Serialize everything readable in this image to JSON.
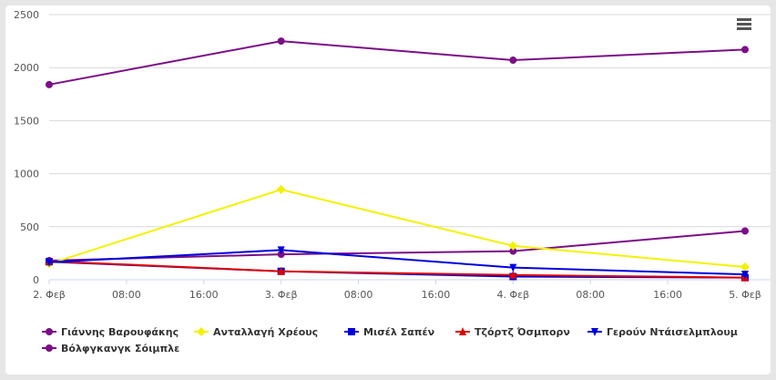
{
  "menu_icon": "hamburger-menu-icon",
  "chart_data": {
    "type": "line",
    "title": "",
    "xlabel": "",
    "ylabel": "",
    "ylim": [
      0,
      2500
    ],
    "yticks": [
      0,
      500,
      1000,
      1500,
      2000,
      2500
    ],
    "xrange_hours": [
      0,
      72
    ],
    "xticks": [
      {
        "h": 0,
        "label": "2. Φεβ"
      },
      {
        "h": 12,
        "label": "08:00"
      },
      {
        "h": 24,
        "label": "16:00"
      },
      {
        "h": 36,
        "label": "3. Φεβ"
      },
      {
        "h": 48,
        "label": "08:00"
      },
      {
        "h": 60,
        "label": "16:00"
      },
      {
        "h": 72,
        "label": "4. Φεβ"
      },
      {
        "h": 84,
        "label": "08:00"
      },
      {
        "h": 96,
        "label": "16:00"
      },
      {
        "h": 108,
        "label": "5. Φεβ"
      }
    ],
    "x": [
      "2. Φεβ",
      "3. Φεβ",
      "4. Φεβ",
      "5. Φεβ"
    ],
    "grid": true,
    "legend_position": "bottom-left",
    "series": [
      {
        "name": "Γιάννης Βαρουφάκης",
        "color": "#7b0f86",
        "marker": "circle",
        "values": [
          180,
          240,
          270,
          460
        ]
      },
      {
        "name": "Ανταλλαγή Χρέους",
        "color": "#f2f200",
        "marker": "diamond",
        "values": [
          150,
          850,
          320,
          120
        ]
      },
      {
        "name": "Μισέλ Σαπέν",
        "color": "#0000dd",
        "marker": "square",
        "values": [
          170,
          80,
          30,
          20
        ]
      },
      {
        "name": "Τζόρτζ Όσμπορν",
        "color": "#e00000",
        "marker": "triangle",
        "values": [
          175,
          80,
          45,
          20
        ]
      },
      {
        "name": "Γερούν Ντάισελμπλουμ",
        "color": "#0000dd",
        "marker": "triangle-down",
        "values": [
          165,
          280,
          115,
          50
        ]
      },
      {
        "name": "Βόλφγκανγκ Σόιμπλε",
        "color": "#7b0f86",
        "marker": "circle",
        "values": [
          1840,
          2250,
          2070,
          2170
        ]
      }
    ]
  }
}
